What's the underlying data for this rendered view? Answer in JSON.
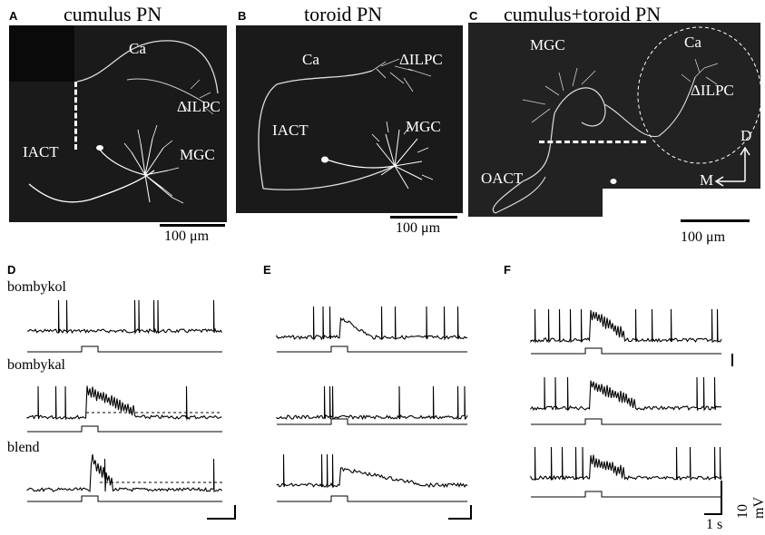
{
  "panels_top": [
    {
      "letter": "A",
      "title": "cumulus PN",
      "labels": {
        "ca": "Ca",
        "ilpc": "ΔILPC",
        "iact": "IACT",
        "mgc": "MGC"
      },
      "scale": "100 μm"
    },
    {
      "letter": "B",
      "title": "toroid PN",
      "labels": {
        "ca": "Ca",
        "ilpc": "ΔILPC",
        "iact": "IACT",
        "mgc": "MGC"
      },
      "scale": "100 μm"
    },
    {
      "letter": "C",
      "title": "cumulus+toroid PN",
      "labels": {
        "ca": "Ca",
        "ilpc": "ΔILPC",
        "oact": "OACT",
        "mgc": "MGC",
        "d": "D",
        "m": "M"
      },
      "scale": "100 μm"
    }
  ],
  "panels_bottom": [
    {
      "letter": "D"
    },
    {
      "letter": "E"
    },
    {
      "letter": "F"
    }
  ],
  "stimuli": [
    "bombykol",
    "bombykal",
    "blend"
  ],
  "scalebar_voltage": "10 mV",
  "scalebar_time": "1 s",
  "colors": {
    "neuron": "#ffffff",
    "background": "#1a1a1a",
    "trace": "#000000"
  }
}
